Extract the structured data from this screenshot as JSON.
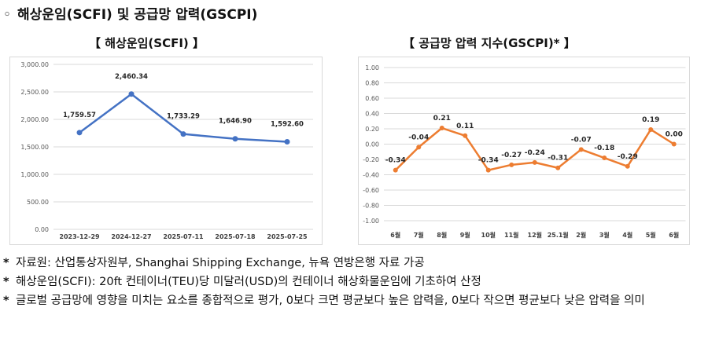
{
  "heading": {
    "bullet": "◦",
    "title": "해상운임(SCFI) 및 공급망 압력(GSCPI)"
  },
  "chart_data": [
    {
      "type": "line",
      "title": "【 해상운임(SCFI) 】",
      "categories": [
        "2023-12-29",
        "2024-12-27",
        "2025-07-11",
        "2025-07-18",
        "2025-07-25"
      ],
      "values": [
        1759.57,
        2460.34,
        1733.29,
        1646.9,
        1592.6
      ],
      "data_labels": [
        "1,759.57",
        "2,460.34",
        "1,733.29",
        "1,646.90",
        "1,592.60"
      ],
      "ylim": [
        0,
        3000
      ],
      "yticks": [
        0,
        500,
        1000,
        1500,
        2000,
        2500,
        3000
      ],
      "ytick_labels": [
        "0.00",
        "500.00",
        "1,000.00",
        "1,500.00",
        "2,000.00",
        "2,500.00",
        "3,000.00"
      ],
      "color": "#4472c4",
      "grid": true,
      "xlabel": "",
      "ylabel": ""
    },
    {
      "type": "line",
      "title": "【 공급망 압력 지수(GSCPI)* 】",
      "categories": [
        "6월",
        "7월",
        "8월",
        "9월",
        "10월",
        "11월",
        "12월",
        "25.1월",
        "2월",
        "3월",
        "4월",
        "5월",
        "6월"
      ],
      "values": [
        -0.34,
        -0.04,
        0.21,
        0.11,
        -0.34,
        -0.27,
        -0.24,
        -0.31,
        -0.07,
        -0.18,
        -0.29,
        0.19,
        0.0
      ],
      "data_labels": [
        "-0.34",
        "-0.04",
        "0.21",
        "0.11",
        "-0.34",
        "-0.27",
        "-0.24",
        "-0.31",
        "-0.07",
        "-0.18",
        "-0.29",
        "0.19",
        "0.00"
      ],
      "ylim": [
        -1.0,
        1.0
      ],
      "yticks": [
        -1.0,
        -0.8,
        -0.6,
        -0.4,
        -0.2,
        0.0,
        0.2,
        0.4,
        0.6,
        0.8,
        1.0
      ],
      "ytick_labels": [
        "-1.00",
        "-0.80",
        "-0.60",
        "-0.40",
        "-0.20",
        "0.00",
        "0.20",
        "0.40",
        "0.60",
        "0.80",
        "1.00"
      ],
      "color": "#ed7d31",
      "grid": true,
      "xlabel": "",
      "ylabel": ""
    }
  ],
  "notes": [
    {
      "mark": "*",
      "text": "자료원: 산업통상자원부, Shanghai Shipping Exchange, 뉴욕 연방은행 자료 가공"
    },
    {
      "mark": "*",
      "text": "해상운임(SCFI): 20ft 컨테이너(TEU)당 미달러(USD)의 컨테이너 해상화물운임에 기초하여 산정"
    },
    {
      "mark": "*",
      "text": "글로벌 공급망에 영향을 미치는 요소를 종합적으로 평가, 0보다 크면 평균보다 높은 압력을, 0보다 작으면 평균보다 낮은 압력을 의미"
    }
  ]
}
